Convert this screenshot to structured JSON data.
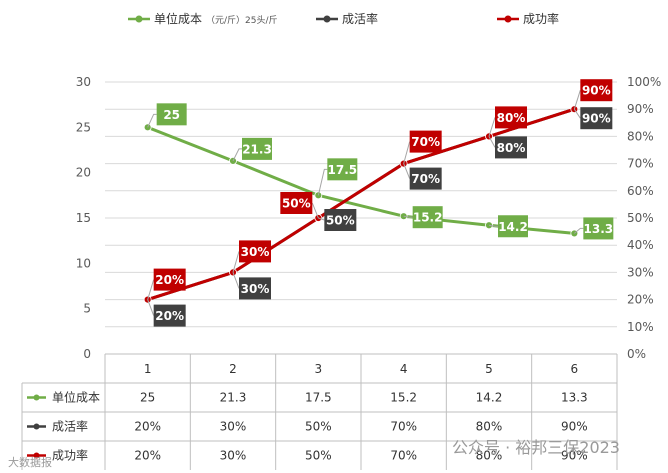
{
  "chart_data": {
    "type": "line",
    "categories": [
      "1",
      "2",
      "3",
      "4",
      "5",
      "6"
    ],
    "series": [
      {
        "name": "单位成本",
        "axis": "left",
        "color": "#70ad47",
        "values": [
          25,
          21.3,
          17.5,
          15.2,
          14.2,
          13.3
        ],
        "labels": [
          "25",
          "21.3",
          "17.5",
          "15.2",
          "14.2",
          "13.3"
        ]
      },
      {
        "name": "成活率",
        "axis": "right",
        "color": "#404040",
        "values": [
          20,
          30,
          50,
          70,
          80,
          90
        ],
        "labels": [
          "20%",
          "30%",
          "50%",
          "70%",
          "80%",
          "90%"
        ]
      },
      {
        "name": "成功率",
        "axis": "right",
        "color": "#c00000",
        "values": [
          20,
          30,
          50,
          70,
          80,
          90
        ],
        "labels": [
          "20%",
          "30%",
          "50%",
          "70%",
          "80%",
          "90%"
        ]
      }
    ],
    "legend": {
      "position": "top",
      "items": [
        {
          "label": "单位成本",
          "unit": "（元/斤）25头/斤",
          "color": "#70ad47"
        },
        {
          "label": "成活率",
          "unit": "",
          "color": "#404040"
        },
        {
          "label": "成功率",
          "unit": "",
          "color": "#c00000"
        }
      ]
    },
    "y_left": {
      "ylim": [
        0,
        30
      ],
      "ticks": [
        "0",
        "5",
        "10",
        "15",
        "20",
        "25",
        "30"
      ]
    },
    "y_right": {
      "ylim": [
        0,
        100
      ],
      "ticks": [
        "0%",
        "10%",
        "20%",
        "30%",
        "40%",
        "50%",
        "60%",
        "70%",
        "80%",
        "90%",
        "100%"
      ]
    },
    "grid": true,
    "data_table": {
      "rows": [
        {
          "name": "单位成本",
          "color": "#70ad47",
          "cells": [
            "25",
            "21.3",
            "17.5",
            "15.2",
            "14.2",
            "13.3"
          ]
        },
        {
          "name": "成活率",
          "color": "#404040",
          "cells": [
            "20%",
            "30%",
            "50%",
            "70%",
            "80%",
            "90%"
          ]
        },
        {
          "name": "成功率",
          "color": "#c00000",
          "cells": [
            "20%",
            "30%",
            "50%",
            "70%",
            "80%",
            "90%"
          ]
        }
      ]
    }
  },
  "watermarks": {
    "bottom_left": "大数据报",
    "bottom_right": "公众号 · 裕邦三保2023"
  }
}
